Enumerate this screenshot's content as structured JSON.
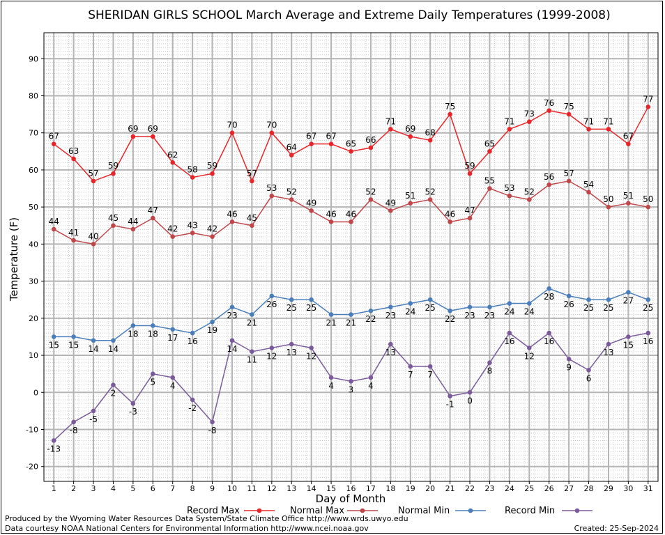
{
  "chart_data": {
    "type": "line",
    "title": "SHERIDAN GIRLS SCHOOL March Average and Extreme Daily Temperatures (1999-2008)",
    "xlabel": "Day of Month",
    "ylabel": "Temperature (F)",
    "x": [
      1,
      2,
      3,
      4,
      5,
      6,
      7,
      8,
      9,
      10,
      11,
      12,
      13,
      14,
      15,
      16,
      17,
      18,
      19,
      20,
      21,
      22,
      23,
      24,
      25,
      26,
      27,
      28,
      29,
      30,
      31
    ],
    "ylim": [
      -24,
      97
    ],
    "yticks": [
      -20,
      -10,
      0,
      10,
      20,
      30,
      40,
      50,
      60,
      70,
      80,
      90
    ],
    "grid": true,
    "legend_position": "bottom",
    "series": [
      {
        "name": "Record Max",
        "color": "#e8262a",
        "values": [
          67,
          63,
          57,
          59,
          69,
          69,
          62,
          58,
          59,
          70,
          57,
          70,
          64,
          67,
          67,
          65,
          66,
          71,
          69,
          68,
          75,
          59,
          65,
          71,
          73,
          76,
          75,
          71,
          71,
          67,
          77
        ]
      },
      {
        "name": "Normal Max",
        "color": "#c0464a",
        "values": [
          44,
          41,
          40,
          45,
          44,
          47,
          42,
          43,
          42,
          46,
          45,
          53,
          52,
          49,
          46,
          46,
          52,
          49,
          51,
          52,
          46,
          47,
          55,
          53,
          52,
          56,
          57,
          54,
          50,
          51,
          50
        ]
      },
      {
        "name": "Normal Min",
        "color": "#4a7ebb",
        "values": [
          15,
          15,
          14,
          14,
          18,
          18,
          17,
          16,
          19,
          23,
          21,
          26,
          25,
          25,
          21,
          21,
          22,
          23,
          24,
          25,
          22,
          23,
          23,
          24,
          24,
          28,
          26,
          25,
          25,
          27,
          25
        ]
      },
      {
        "name": "Record Min",
        "color": "#7b5a9c",
        "values": [
          -13,
          -8,
          -5,
          2,
          -3,
          5,
          4,
          -2,
          -8,
          14,
          11,
          12,
          13,
          12,
          4,
          3,
          4,
          13,
          7,
          7,
          -1,
          0,
          8,
          16,
          12,
          16,
          9,
          6,
          13,
          15,
          16
        ]
      }
    ]
  },
  "footer": {
    "produced_by": "Produced by the Wyoming Water Resources Data System/State Climate Office http://www.wrds.uwyo.edu",
    "courtesy": "Data courtesy NOAA National Centers for Environmental Information http://www.ncei.noaa.gov",
    "created": "Created:  25-Sep-2024"
  }
}
